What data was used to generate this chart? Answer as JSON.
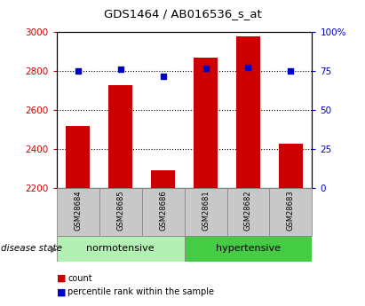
{
  "title": "GDS1464 / AB016536_s_at",
  "samples": [
    "GSM28684",
    "GSM28685",
    "GSM28686",
    "GSM28681",
    "GSM28682",
    "GSM28683"
  ],
  "counts": [
    2520,
    2730,
    2290,
    2870,
    2980,
    2430
  ],
  "percentile_values": [
    2800,
    2810,
    2775,
    2815,
    2820,
    2800
  ],
  "y_min": 2200,
  "y_max": 3000,
  "y_ticks": [
    2200,
    2400,
    2600,
    2800,
    3000
  ],
  "right_y_ticks_pct": [
    0,
    25,
    50,
    75,
    100
  ],
  "right_y_labels": [
    "0",
    "25",
    "50",
    "75",
    "100%"
  ],
  "groups": [
    {
      "label": "normotensive"
    },
    {
      "label": "hypertensive"
    }
  ],
  "bar_color": "#cc0000",
  "dot_color": "#0000cc",
  "bar_width": 0.55,
  "label_color_left": "#cc0000",
  "label_color_right": "#0000cc",
  "group_color_norm": "#b3f0b3",
  "group_color_hyper": "#44cc44",
  "tick_bg_color": "#c8c8c8",
  "disease_state_label": "disease state",
  "legend_count": "count",
  "legend_percentile": "percentile rank within the sample"
}
